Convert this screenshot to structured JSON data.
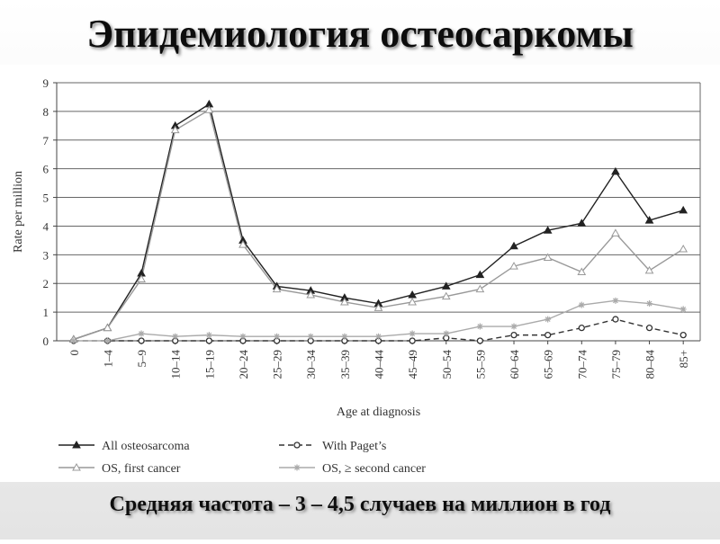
{
  "slide": {
    "title": "Эпидемиология остеосаркомы",
    "caption": "Средняя частота – 3 – 4,5 случаев на миллион в год"
  },
  "chart_data": {
    "type": "line",
    "x_label": "Age at diagnosis",
    "y_label": "Rate per million",
    "categories": [
      "0",
      "1–4",
      "5–9",
      "10–14",
      "15–19",
      "20–24",
      "25–29",
      "30–34",
      "35–39",
      "40–44",
      "45–49",
      "50–54",
      "55–59",
      "60–64",
      "65–69",
      "70–74",
      "75–79",
      "80–84",
      "85+"
    ],
    "series": [
      {
        "name": "All osteosarcoma",
        "color": "#222222",
        "marker": "triangle-filled",
        "dashed": false,
        "values": [
          0.05,
          0.45,
          2.35,
          7.5,
          8.25,
          3.5,
          1.9,
          1.75,
          1.5,
          1.3,
          1.6,
          1.9,
          2.3,
          3.3,
          3.85,
          4.1,
          5.9,
          4.2,
          4.55
        ]
      },
      {
        "name": "With Paget’s",
        "color": "#333333",
        "marker": "circle-open",
        "dashed": true,
        "values": [
          0,
          0,
          0,
          0,
          0,
          0,
          0,
          0,
          0,
          0,
          0,
          0.1,
          0,
          0.2,
          0.2,
          0.45,
          0.75,
          0.45,
          0.2
        ]
      },
      {
        "name": "OS, first cancer",
        "color": "#999999",
        "marker": "triangle-open",
        "dashed": false,
        "values": [
          0.05,
          0.45,
          2.15,
          7.35,
          8.05,
          3.35,
          1.8,
          1.6,
          1.35,
          1.15,
          1.35,
          1.55,
          1.8,
          2.6,
          2.9,
          2.4,
          3.75,
          2.45,
          3.2
        ]
      },
      {
        "name": "OS, ≥ second cancer",
        "color": "#aaaaaa",
        "marker": "star",
        "dashed": false,
        "values": [
          0,
          0,
          0.25,
          0.15,
          0.2,
          0.15,
          0.15,
          0.15,
          0.15,
          0.15,
          0.25,
          0.25,
          0.5,
          0.5,
          0.75,
          1.25,
          1.4,
          1.3,
          1.1
        ]
      }
    ],
    "ylim": [
      0,
      9
    ],
    "yticks": [
      0,
      1,
      2,
      3,
      4,
      5,
      6,
      7,
      8,
      9
    ],
    "grid": true
  }
}
